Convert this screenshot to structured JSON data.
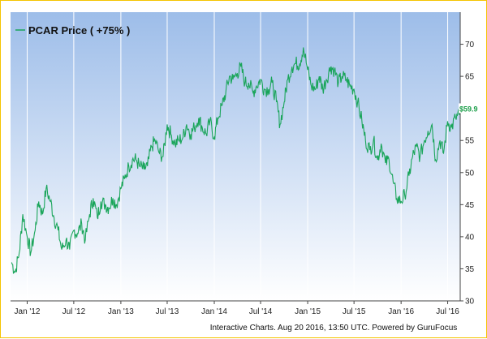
{
  "chart_data": {
    "type": "line",
    "title": "",
    "xlabel": "",
    "ylabel": "",
    "series": [
      {
        "name": "PCAR Price ( +75% )",
        "color": "#1aa55a",
        "x": [
          "2011-11-01",
          "2011-11-15",
          "2011-12-01",
          "2011-12-15",
          "2012-01-01",
          "2012-01-15",
          "2012-02-01",
          "2012-02-15",
          "2012-03-01",
          "2012-03-15",
          "2012-04-01",
          "2012-04-15",
          "2012-05-01",
          "2012-05-15",
          "2012-06-01",
          "2012-06-15",
          "2012-07-01",
          "2012-07-15",
          "2012-08-01",
          "2012-08-15",
          "2012-09-01",
          "2012-09-15",
          "2012-10-01",
          "2012-10-15",
          "2012-11-01",
          "2012-11-15",
          "2012-12-01",
          "2012-12-15",
          "2013-01-01",
          "2013-01-15",
          "2013-02-01",
          "2013-02-15",
          "2013-03-01",
          "2013-03-15",
          "2013-04-01",
          "2013-04-15",
          "2013-05-01",
          "2013-05-15",
          "2013-06-01",
          "2013-06-15",
          "2013-07-01",
          "2013-07-15",
          "2013-08-01",
          "2013-08-15",
          "2013-09-01",
          "2013-09-15",
          "2013-10-01",
          "2013-10-15",
          "2013-11-01",
          "2013-11-15",
          "2013-12-01",
          "2013-12-15",
          "2014-01-01",
          "2014-01-15",
          "2014-02-01",
          "2014-02-15",
          "2014-03-01",
          "2014-03-15",
          "2014-04-01",
          "2014-04-15",
          "2014-05-01",
          "2014-05-15",
          "2014-06-01",
          "2014-06-15",
          "2014-07-01",
          "2014-07-15",
          "2014-08-01",
          "2014-08-15",
          "2014-09-01",
          "2014-09-15",
          "2014-10-01",
          "2014-10-15",
          "2014-11-01",
          "2014-11-15",
          "2014-12-01",
          "2014-12-15",
          "2015-01-01",
          "2015-01-15",
          "2015-02-01",
          "2015-02-15",
          "2015-03-01",
          "2015-03-15",
          "2015-04-01",
          "2015-04-15",
          "2015-05-01",
          "2015-05-15",
          "2015-06-01",
          "2015-06-15",
          "2015-07-01",
          "2015-07-15",
          "2015-08-01",
          "2015-08-15",
          "2015-09-01",
          "2015-09-15",
          "2015-10-01",
          "2015-10-15",
          "2015-11-01",
          "2015-11-15",
          "2015-12-01",
          "2015-12-15",
          "2016-01-01",
          "2016-01-15",
          "2016-02-01",
          "2016-02-15",
          "2016-03-01",
          "2016-03-15",
          "2016-04-01",
          "2016-04-15",
          "2016-05-01",
          "2016-05-15",
          "2016-06-01",
          "2016-06-15",
          "2016-07-01",
          "2016-07-15",
          "2016-08-01",
          "2016-08-15",
          "2016-08-19"
        ],
        "values": [
          36.0,
          34.5,
          37.5,
          43.5,
          40.0,
          37.5,
          41.0,
          45.5,
          43.5,
          47.5,
          45.5,
          43.0,
          41.0,
          38.0,
          39.5,
          38.0,
          41.0,
          40.5,
          42.0,
          39.5,
          43.5,
          46.0,
          43.0,
          45.5,
          45.0,
          44.5,
          46.0,
          45.0,
          47.5,
          49.0,
          51.0,
          52.0,
          52.0,
          51.0,
          50.5,
          51.0,
          54.0,
          55.0,
          53.0,
          52.5,
          57.5,
          56.0,
          54.5,
          55.0,
          55.5,
          57.5,
          56.0,
          57.0,
          58.5,
          57.0,
          56.0,
          58.0,
          55.5,
          58.5,
          60.5,
          62.5,
          65.0,
          64.5,
          65.5,
          66.5,
          64.0,
          64.0,
          62.5,
          63.5,
          64.5,
          63.0,
          63.0,
          64.0,
          61.0,
          57.5,
          61.0,
          64.5,
          66.5,
          67.0,
          67.0,
          69.5,
          66.0,
          63.5,
          63.0,
          65.0,
          63.0,
          64.5,
          66.5,
          66.0,
          64.0,
          65.0,
          64.5,
          63.5,
          63.0,
          61.0,
          58.0,
          55.0,
          53.5,
          55.0,
          52.0,
          54.5,
          51.5,
          52.0,
          48.5,
          46.0,
          45.5,
          46.5,
          49.5,
          52.5,
          54.0,
          52.5,
          55.0,
          56.5,
          57.5,
          52.0,
          55.0,
          53.0,
          58.0,
          57.0,
          58.5,
          59.0,
          59.9
        ]
      }
    ],
    "x_ticks": [
      "Jan '12",
      "Jul '12",
      "Jan '13",
      "Jul '13",
      "Jan '14",
      "Jul '14",
      "Jan '15",
      "Jul '15",
      "Jan '16",
      "Jul '16"
    ],
    "x_tick_dates": [
      "2012-01-01",
      "2012-07-01",
      "2013-01-01",
      "2013-07-01",
      "2014-01-01",
      "2014-07-01",
      "2015-01-01",
      "2015-07-01",
      "2016-01-01",
      "2016-07-01"
    ],
    "x_range": [
      "2011-10-28",
      "2016-08-19"
    ],
    "y_ticks": [
      30,
      35,
      40,
      45,
      50,
      55,
      60,
      65,
      70
    ],
    "ylim": [
      30,
      75
    ],
    "y_axis_side": "right",
    "grid": "vertical",
    "legend_position": "top-left",
    "last_value_label": "$59.9",
    "background_color": "#aac6ec",
    "footer": "Interactive Charts. Aug 20 2016, 13:50 UTC. Powered by GuruFocus"
  }
}
